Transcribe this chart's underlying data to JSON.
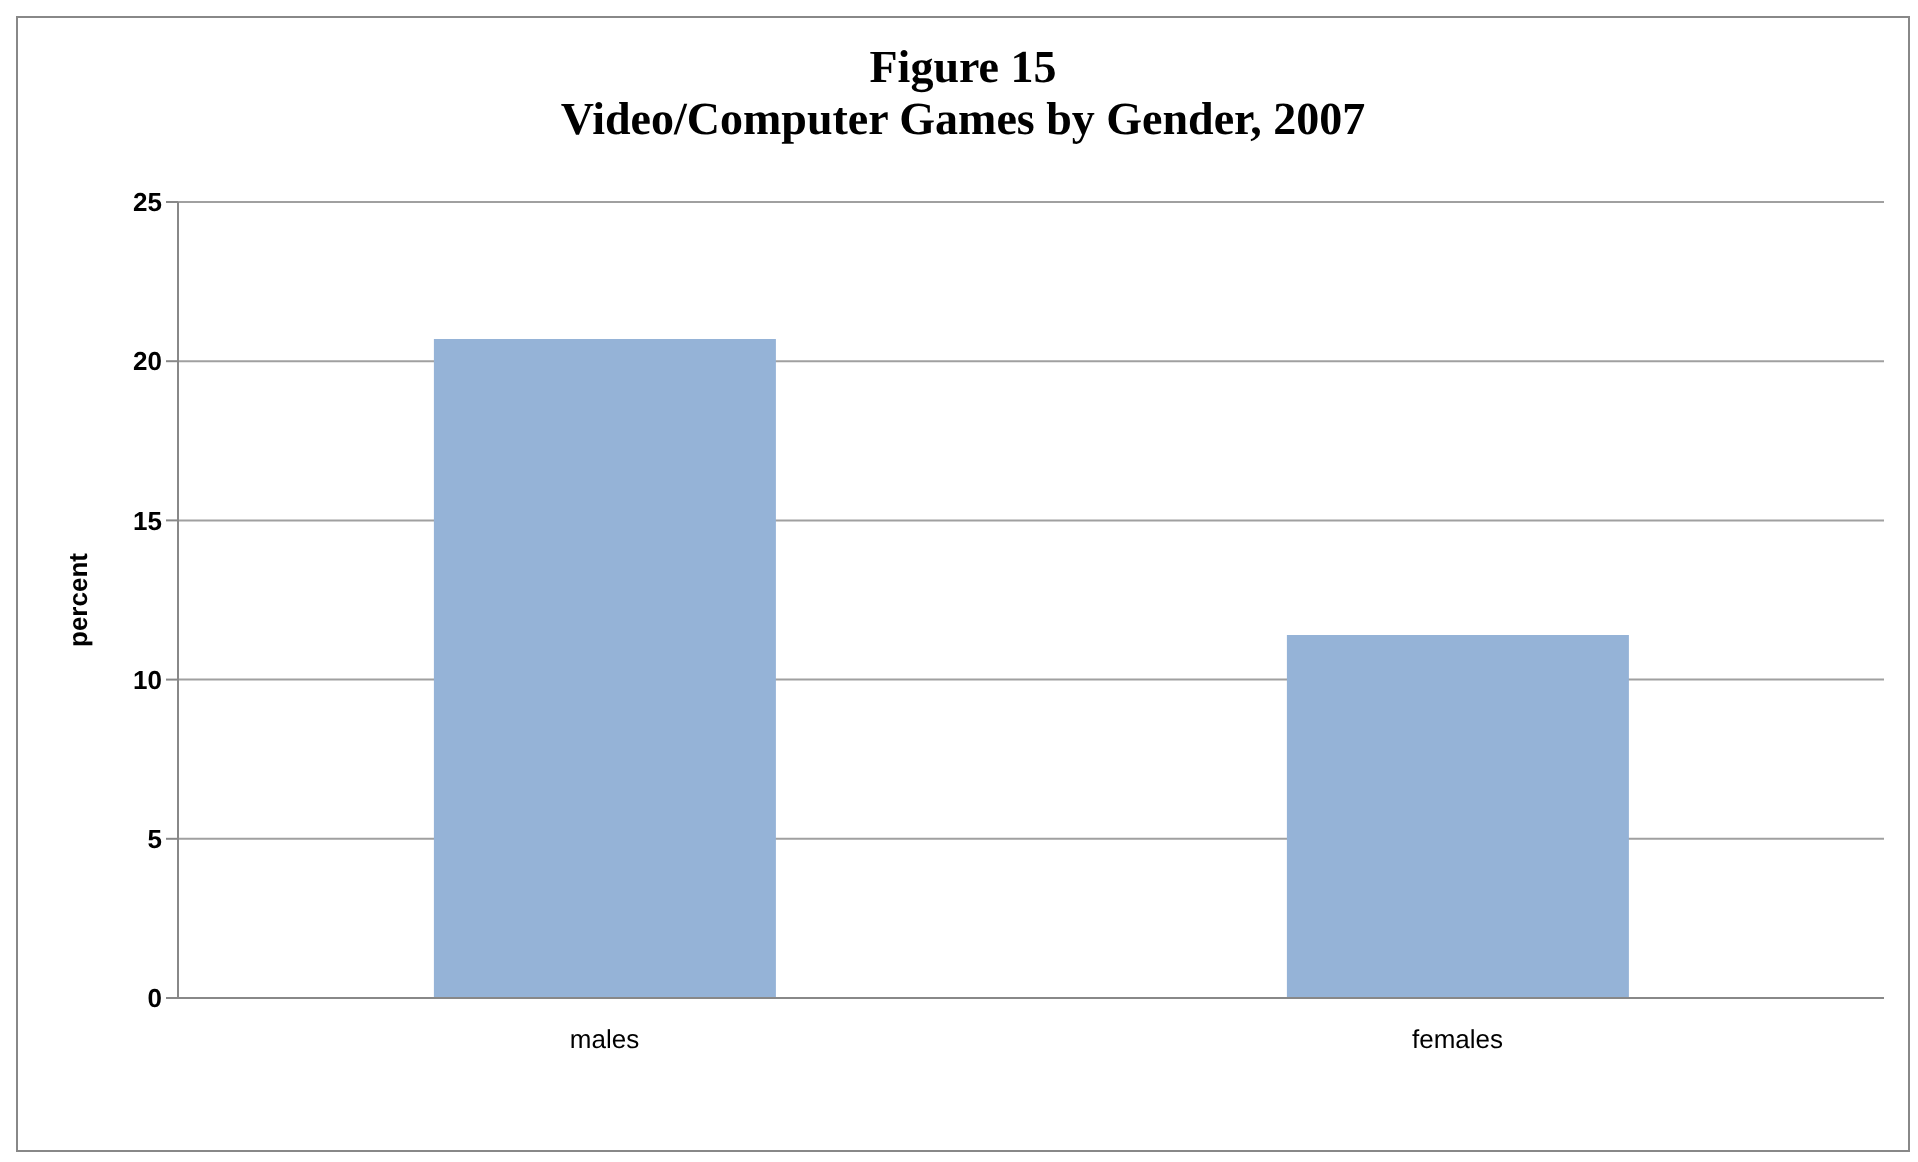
{
  "chart_data": {
    "type": "bar",
    "title": "Figure 15\nVideo/Computer Games by Gender, 2007",
    "ylabel": "percent",
    "categories": [
      "males",
      "females"
    ],
    "values": [
      20.7,
      11.4
    ],
    "color": "#95b3d7",
    "ylim": [
      0,
      25
    ],
    "yticks": [
      0,
      5,
      10,
      15,
      20,
      25
    ],
    "grid": "y"
  }
}
